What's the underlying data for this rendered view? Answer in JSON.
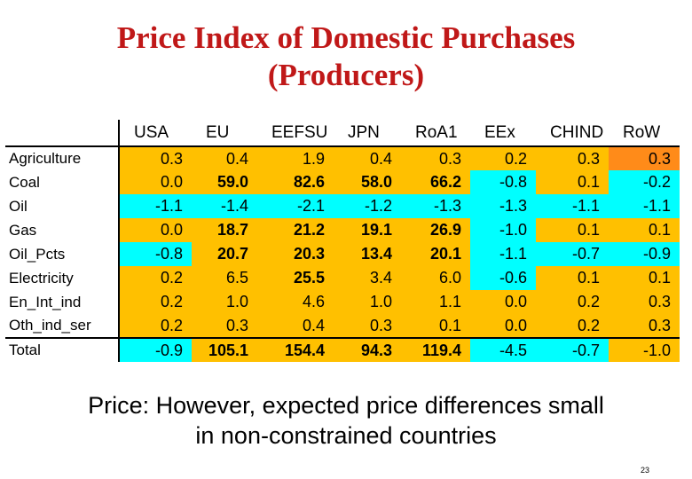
{
  "title": {
    "line1": "Price Index of Domestic Purchases",
    "line2": "(Producers)"
  },
  "table": {
    "columns": [
      "USA",
      "EU",
      "EEFSU",
      "JPN",
      "RoA1",
      "EEx",
      "CHIND",
      "RoW"
    ],
    "rows": [
      {
        "label": "Agriculture",
        "cells": [
          {
            "value": "0.3",
            "color": "yellow",
            "bold": false
          },
          {
            "value": "0.4",
            "color": "yellow",
            "bold": false
          },
          {
            "value": "1.9",
            "color": "yellow",
            "bold": false
          },
          {
            "value": "0.4",
            "color": "yellow",
            "bold": false
          },
          {
            "value": "0.3",
            "color": "yellow",
            "bold": false
          },
          {
            "value": "0.2",
            "color": "yellow",
            "bold": false
          },
          {
            "value": "0.3",
            "color": "yellow",
            "bold": false
          },
          {
            "value": "0.3",
            "color": "orange",
            "bold": false
          }
        ]
      },
      {
        "label": "Coal",
        "cells": [
          {
            "value": "0.0",
            "color": "yellow",
            "bold": false
          },
          {
            "value": "59.0",
            "color": "yellow",
            "bold": true
          },
          {
            "value": "82.6",
            "color": "yellow",
            "bold": true
          },
          {
            "value": "58.0",
            "color": "yellow",
            "bold": true
          },
          {
            "value": "66.2",
            "color": "yellow",
            "bold": true
          },
          {
            "value": "-0.8",
            "color": "cyan",
            "bold": false
          },
          {
            "value": "0.1",
            "color": "yellow",
            "bold": false
          },
          {
            "value": "-0.2",
            "color": "cyan",
            "bold": false
          }
        ]
      },
      {
        "label": "Oil",
        "cells": [
          {
            "value": "-1.1",
            "color": "cyan",
            "bold": false
          },
          {
            "value": "-1.4",
            "color": "cyan",
            "bold": false
          },
          {
            "value": "-2.1",
            "color": "cyan",
            "bold": false
          },
          {
            "value": "-1.2",
            "color": "cyan",
            "bold": false
          },
          {
            "value": "-1.3",
            "color": "cyan",
            "bold": false
          },
          {
            "value": "-1.3",
            "color": "cyan",
            "bold": false
          },
          {
            "value": "-1.1",
            "color": "cyan",
            "bold": false
          },
          {
            "value": "-1.1",
            "color": "cyan",
            "bold": false
          }
        ]
      },
      {
        "label": "Gas",
        "cells": [
          {
            "value": "0.0",
            "color": "yellow",
            "bold": false
          },
          {
            "value": "18.7",
            "color": "yellow",
            "bold": true
          },
          {
            "value": "21.2",
            "color": "yellow",
            "bold": true
          },
          {
            "value": "19.1",
            "color": "yellow",
            "bold": true
          },
          {
            "value": "26.9",
            "color": "yellow",
            "bold": true
          },
          {
            "value": "-1.0",
            "color": "cyan",
            "bold": false
          },
          {
            "value": "0.1",
            "color": "yellow",
            "bold": false
          },
          {
            "value": "0.1",
            "color": "yellow",
            "bold": false
          }
        ]
      },
      {
        "label": "Oil_Pcts",
        "cells": [
          {
            "value": "-0.8",
            "color": "cyan",
            "bold": false
          },
          {
            "value": "20.7",
            "color": "yellow",
            "bold": true
          },
          {
            "value": "20.3",
            "color": "yellow",
            "bold": true
          },
          {
            "value": "13.4",
            "color": "yellow",
            "bold": true
          },
          {
            "value": "20.1",
            "color": "yellow",
            "bold": true
          },
          {
            "value": "-1.1",
            "color": "cyan",
            "bold": false
          },
          {
            "value": "-0.7",
            "color": "cyan",
            "bold": false
          },
          {
            "value": "-0.9",
            "color": "cyan",
            "bold": false
          }
        ]
      },
      {
        "label": "Electricity",
        "cells": [
          {
            "value": "0.2",
            "color": "yellow",
            "bold": false
          },
          {
            "value": "6.5",
            "color": "yellow",
            "bold": false
          },
          {
            "value": "25.5",
            "color": "yellow",
            "bold": true
          },
          {
            "value": "3.4",
            "color": "yellow",
            "bold": false
          },
          {
            "value": "6.0",
            "color": "yellow",
            "bold": false
          },
          {
            "value": "-0.6",
            "color": "cyan",
            "bold": false
          },
          {
            "value": "0.1",
            "color": "yellow",
            "bold": false
          },
          {
            "value": "0.1",
            "color": "yellow",
            "bold": false
          }
        ]
      },
      {
        "label": "En_Int_ind",
        "cells": [
          {
            "value": "0.2",
            "color": "yellow",
            "bold": false
          },
          {
            "value": "1.0",
            "color": "yellow",
            "bold": false
          },
          {
            "value": "4.6",
            "color": "yellow",
            "bold": false
          },
          {
            "value": "1.0",
            "color": "yellow",
            "bold": false
          },
          {
            "value": "1.1",
            "color": "yellow",
            "bold": false
          },
          {
            "value": "0.0",
            "color": "yellow",
            "bold": false
          },
          {
            "value": "0.2",
            "color": "yellow",
            "bold": false
          },
          {
            "value": "0.3",
            "color": "yellow",
            "bold": false
          }
        ]
      },
      {
        "label": "Oth_ind_ser",
        "cells": [
          {
            "value": "0.2",
            "color": "yellow",
            "bold": false
          },
          {
            "value": "0.3",
            "color": "yellow",
            "bold": false
          },
          {
            "value": "0.4",
            "color": "yellow",
            "bold": false
          },
          {
            "value": "0.3",
            "color": "yellow",
            "bold": false
          },
          {
            "value": "0.1",
            "color": "yellow",
            "bold": false
          },
          {
            "value": "0.0",
            "color": "yellow",
            "bold": false
          },
          {
            "value": "0.2",
            "color": "yellow",
            "bold": false
          },
          {
            "value": "0.3",
            "color": "yellow",
            "bold": false
          }
        ]
      },
      {
        "label": "Total",
        "total": true,
        "cells": [
          {
            "value": "-0.9",
            "color": "cyan",
            "bold": false
          },
          {
            "value": "105.1",
            "color": "yellow",
            "bold": true
          },
          {
            "value": "154.4",
            "color": "yellow",
            "bold": true
          },
          {
            "value": "94.3",
            "color": "yellow",
            "bold": true
          },
          {
            "value": "119.4",
            "color": "yellow",
            "bold": true
          },
          {
            "value": "-4.5",
            "color": "cyan",
            "bold": false
          },
          {
            "value": "-0.7",
            "color": "cyan",
            "bold": false
          },
          {
            "value": "-1.0",
            "color": "yellow",
            "bold": false
          }
        ]
      }
    ]
  },
  "colors": {
    "title": "#c01818",
    "yellow": "#ffc000",
    "cyan": "#00ffff",
    "orange": "#ff8b19"
  },
  "caption": {
    "line1": "Price: However, expected price differences small",
    "line2": "in non-constrained countries"
  },
  "page_number": "23"
}
